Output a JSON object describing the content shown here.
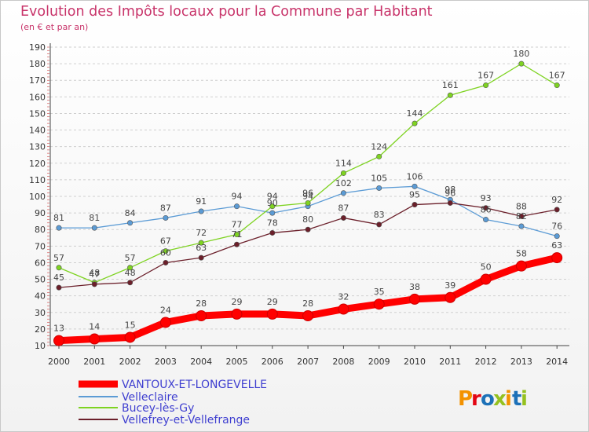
{
  "title": "Evolution des Impôts locaux pour la Commune par Habitant",
  "subtitle": "(en € et par an)",
  "brand": {
    "logo_text": "Proxiti",
    "letter_colors": [
      "#f39200",
      "#e30613",
      "#1d71b8",
      "#95c11f",
      "#f39200",
      "#1d71b8",
      "#95c11f"
    ]
  },
  "chart_data": {
    "type": "line",
    "title": "Evolution des Impôts locaux pour la Commune par Habitant",
    "subtitle": "(en € et par an)",
    "xlabel": "",
    "ylabel": "",
    "x": [
      "2000",
      "2001",
      "2002",
      "2003",
      "2004",
      "2005",
      "2006",
      "2007",
      "2008",
      "2009",
      "2010",
      "2011",
      "2012",
      "2013",
      "2014"
    ],
    "y_ticks": [
      10,
      20,
      30,
      40,
      50,
      60,
      70,
      80,
      90,
      100,
      110,
      120,
      130,
      140,
      150,
      160,
      170,
      180,
      190
    ],
    "ylim": [
      10,
      190
    ],
    "grid": "horizontal dashed",
    "legend_position": "bottom-left",
    "series": [
      {
        "name": "VANTOUX-ET-LONGEVELLE",
        "color": "#ff0000",
        "emphasis": "thick",
        "values": [
          13,
          14,
          15,
          24,
          28,
          29,
          29,
          28,
          32,
          35,
          38,
          39,
          50,
          58,
          63
        ]
      },
      {
        "name": "Velleclaire",
        "color": "#5b9bd5",
        "values": [
          81,
          81,
          84,
          87,
          91,
          94,
          90,
          94,
          102,
          105,
          106,
          98,
          86,
          82,
          76
        ]
      },
      {
        "name": "Bucey-lès-Gy",
        "color": "#7ed321",
        "values": [
          57,
          48,
          57,
          67,
          72,
          77,
          94,
          96,
          114,
          124,
          144,
          161,
          167,
          180,
          167
        ]
      },
      {
        "name": "Vellefrey-et-Vellefrange",
        "color": "#6b1f2a",
        "values": [
          45,
          47,
          48,
          60,
          63,
          71,
          78,
          80,
          87,
          83,
          95,
          96,
          93,
          88,
          92
        ]
      }
    ]
  }
}
